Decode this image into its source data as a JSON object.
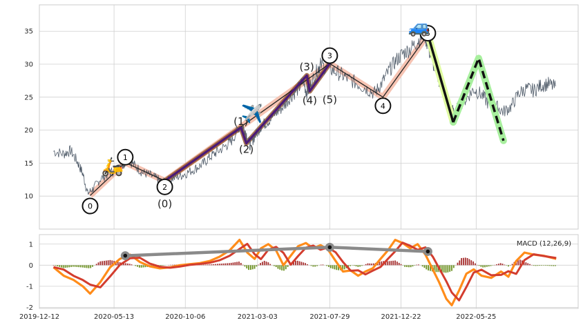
{
  "chart_data": [
    {
      "type": "line",
      "panel": "price",
      "ylim": [
        5,
        39
      ],
      "xlim": [
        "2019-12-12",
        "2022-12-20"
      ],
      "grid": true,
      "y_ticks": [
        10,
        15,
        20,
        25,
        30,
        35
      ],
      "series": [
        {
          "points": [
            [
              "2020-01-10",
              16.8
            ],
            [
              "2020-01-31",
              16.4
            ],
            [
              "2020-02-14",
              16.9
            ],
            [
              "2020-02-28",
              15.2
            ],
            [
              "2020-03-10",
              13.4
            ],
            [
              "2020-03-20",
              10.4
            ],
            [
              "2020-04-01",
              11.2
            ],
            [
              "2020-04-15",
              12.6
            ],
            [
              "2020-05-01",
              13.4
            ],
            [
              "2020-05-15",
              13.9
            ],
            [
              "2020-06-01",
              14.8
            ],
            [
              "2020-06-10",
              15.6
            ],
            [
              "2020-06-25",
              14.6
            ],
            [
              "2020-07-10",
              13.6
            ],
            [
              "2020-07-25",
              13.2
            ],
            [
              "2020-08-10",
              12.6
            ],
            [
              "2020-08-20",
              12.0
            ],
            [
              "2020-09-01",
              12.4
            ],
            [
              "2020-09-20",
              12.9
            ],
            [
              "2020-10-06",
              13.4
            ],
            [
              "2020-10-25",
              14.1
            ],
            [
              "2020-11-10",
              14.8
            ],
            [
              "2020-11-25",
              15.9
            ],
            [
              "2020-12-10",
              16.7
            ],
            [
              "2020-12-28",
              17.6
            ],
            [
              "2021-01-10",
              18.5
            ],
            [
              "2021-01-25",
              20.6
            ],
            [
              "2021-02-05",
              20.2
            ],
            [
              "2021-02-15",
              17.7
            ],
            [
              "2021-02-25",
              19.0
            ],
            [
              "2021-03-10",
              20.6
            ],
            [
              "2021-03-25",
              21.4
            ],
            [
              "2021-04-10",
              22.6
            ],
            [
              "2021-04-25",
              23.6
            ],
            [
              "2021-05-10",
              25.1
            ],
            [
              "2021-05-25",
              26.2
            ],
            [
              "2021-06-05",
              27.5
            ],
            [
              "2021-06-12",
              25.6
            ],
            [
              "2021-06-22",
              27.2
            ],
            [
              "2021-07-05",
              29.4
            ],
            [
              "2021-07-10",
              29.9
            ],
            [
              "2021-07-29",
              29.3
            ],
            [
              "2021-08-15",
              28.7
            ],
            [
              "2021-09-01",
              27.9
            ],
            [
              "2021-09-20",
              27.2
            ],
            [
              "2021-10-10",
              26.4
            ],
            [
              "2021-10-28",
              25.6
            ],
            [
              "2021-11-10",
              26.8
            ],
            [
              "2021-11-25",
              28.7
            ],
            [
              "2021-12-10",
              30.4
            ],
            [
              "2021-12-25",
              31.6
            ],
            [
              "2022-01-10",
              32.3
            ],
            [
              "2022-01-25",
              33.5
            ],
            [
              "2022-02-08",
              34.6
            ],
            [
              "2022-02-20",
              31.5
            ],
            [
              "2022-03-05",
              28.5
            ],
            [
              "2022-03-20",
              26.0
            ],
            [
              "2022-04-01",
              23.8
            ],
            [
              "2022-04-10",
              22.5
            ],
            [
              "2022-04-20",
              23.8
            ],
            [
              "2022-05-05",
              24.8
            ],
            [
              "2022-05-20",
              26.2
            ],
            [
              "2022-06-05",
              25.4
            ],
            [
              "2022-06-20",
              24.0
            ],
            [
              "2022-07-05",
              23.6
            ],
            [
              "2022-07-20",
              22.8
            ],
            [
              "2022-08-05",
              23.6
            ],
            [
              "2022-08-20",
              25.6
            ],
            [
              "2022-09-05",
              26.3
            ],
            [
              "2022-09-20",
              26.0
            ],
            [
              "2022-10-05",
              26.8
            ],
            [
              "2022-10-20",
              27.0
            ],
            [
              "2022-11-05",
              26.4
            ]
          ]
        }
      ],
      "waves_main": [
        [
          "2020-03-25",
          10.1
        ],
        [
          "2020-06-05",
          15.1
        ],
        [
          "2020-08-25",
          12.3
        ],
        [
          "2021-07-29",
          30.1
        ],
        [
          "2021-11-15",
          25.0
        ],
        [
          "2022-02-15",
          34.5
        ]
      ],
      "waves_sub": [
        [
          "2020-08-25",
          12.3
        ],
        [
          "2021-01-28",
          20.4
        ],
        [
          "2021-02-08",
          18.0
        ],
        [
          "2021-06-12",
          28.3
        ],
        [
          "2021-06-18",
          25.9
        ],
        [
          "2021-07-29",
          30.1
        ]
      ],
      "projection_solid": [
        [
          "2022-02-15",
          34.5
        ],
        [
          "2022-04-08",
          21.2
        ]
      ],
      "projection_dashed": [
        [
          "2022-04-08",
          21.2
        ],
        [
          "2022-05-30",
          30.9
        ],
        [
          "2022-07-20",
          18.4
        ]
      ],
      "labels_main": [
        {
          "text": "0",
          "x": "2020-03-25",
          "y": 8.5
        },
        {
          "text": "1",
          "x": "2020-06-05",
          "y": 15.9
        },
        {
          "text": "2",
          "x": "2020-08-25",
          "y": 11.4
        },
        {
          "text": "3",
          "x": "2021-07-29",
          "y": 31.3
        },
        {
          "text": "4",
          "x": "2021-11-15",
          "y": 23.7
        },
        {
          "text": "5",
          "x": "2022-02-15",
          "y": 34.7
        }
      ],
      "labels_sub": [
        {
          "text": "(0)",
          "x": "2020-08-25",
          "y": 8.8
        },
        {
          "text": "(1)",
          "x": "2021-01-28",
          "y": 21.3
        },
        {
          "text": "(2)",
          "x": "2021-02-08",
          "y": 17.1
        },
        {
          "text": "(3)",
          "x": "2021-06-12",
          "y": 29.6
        },
        {
          "text": "(4)",
          "x": "2021-06-18",
          "y": 24.5
        },
        {
          "text": "(5)",
          "x": "2021-07-29",
          "y": 24.6
        }
      ],
      "emojis": [
        {
          "glyph": "🛵",
          "x": "2020-05-10",
          "y": 14.4
        },
        {
          "glyph": "✈️",
          "x": "2021-02-20",
          "y": 22.4
        },
        {
          "glyph": "🚙",
          "x": "2022-01-28",
          "y": 35.6
        }
      ]
    },
    {
      "type": "line",
      "panel": "macd",
      "title": "MACD (12,26,9)",
      "ylim": [
        -2.05,
        1.45
      ],
      "y_ticks": [
        -2,
        -1,
        0,
        1
      ],
      "x_ticks": [
        "2019-12-12",
        "2020-05-13",
        "2020-10-06",
        "2021-03-03",
        "2021-07-29",
        "2021-12-22",
        "2022-05-25"
      ],
      "grid": true,
      "macd_line": [
        [
          "2020-01-10",
          -0.1
        ],
        [
          "2020-01-31",
          -0.5
        ],
        [
          "2020-02-20",
          -0.7
        ],
        [
          "2020-03-10",
          -1.0
        ],
        [
          "2020-03-25",
          -1.35
        ],
        [
          "2020-04-15",
          -0.8
        ],
        [
          "2020-05-05",
          -0.1
        ],
        [
          "2020-05-25",
          0.3
        ],
        [
          "2020-06-15",
          0.5
        ],
        [
          "2020-07-05",
          0.15
        ],
        [
          "2020-07-25",
          -0.05
        ],
        [
          "2020-08-15",
          -0.15
        ],
        [
          "2020-09-05",
          -0.1
        ],
        [
          "2020-09-25",
          0.0
        ],
        [
          "2020-10-15",
          0.05
        ],
        [
          "2020-11-05",
          0.1
        ],
        [
          "2020-11-25",
          0.2
        ],
        [
          "2020-12-15",
          0.4
        ],
        [
          "2021-01-05",
          0.7
        ],
        [
          "2021-01-25",
          1.2
        ],
        [
          "2021-02-10",
          0.6
        ],
        [
          "2021-02-25",
          0.3
        ],
        [
          "2021-03-10",
          0.8
        ],
        [
          "2021-03-25",
          1.0
        ],
        [
          "2021-04-10",
          0.7
        ],
        [
          "2021-04-25",
          0.0
        ],
        [
          "2021-05-10",
          0.45
        ],
        [
          "2021-05-25",
          0.9
        ],
        [
          "2021-06-10",
          1.05
        ],
        [
          "2021-06-25",
          0.8
        ],
        [
          "2021-07-10",
          0.95
        ],
        [
          "2021-07-25",
          0.75
        ],
        [
          "2021-08-10",
          0.2
        ],
        [
          "2021-08-25",
          -0.3
        ],
        [
          "2021-09-10",
          -0.25
        ],
        [
          "2021-09-25",
          -0.5
        ],
        [
          "2021-10-10",
          -0.3
        ],
        [
          "2021-10-25",
          -0.15
        ],
        [
          "2021-11-10",
          0.3
        ],
        [
          "2021-11-25",
          0.7
        ],
        [
          "2021-12-10",
          1.2
        ],
        [
          "2021-12-25",
          1.05
        ],
        [
          "2022-01-10",
          0.8
        ],
        [
          "2022-01-25",
          1.0
        ],
        [
          "2022-02-10",
          0.5
        ],
        [
          "2022-02-25",
          -0.2
        ],
        [
          "2022-03-10",
          -0.8
        ],
        [
          "2022-03-25",
          -1.6
        ],
        [
          "2022-04-05",
          -1.9
        ],
        [
          "2022-04-20",
          -1.2
        ],
        [
          "2022-05-05",
          -0.4
        ],
        [
          "2022-05-20",
          -0.2
        ],
        [
          "2022-06-05",
          -0.5
        ],
        [
          "2022-06-25",
          -0.6
        ],
        [
          "2022-07-15",
          -0.3
        ],
        [
          "2022-07-30",
          -0.55
        ],
        [
          "2022-08-15",
          0.2
        ],
        [
          "2022-09-01",
          0.6
        ],
        [
          "2022-09-20",
          0.5
        ],
        [
          "2022-10-10",
          0.45
        ],
        [
          "2022-11-05",
          0.3
        ]
      ],
      "trend_line": [
        [
          "2020-06-05",
          0.45
        ],
        [
          "2021-07-29",
          0.85
        ],
        [
          "2022-02-15",
          0.65
        ]
      ]
    }
  ],
  "colors": {
    "price": "#4e5a68",
    "wave_main": "#222222",
    "wave_band": "#f4b9a4",
    "wave_sub": "#4b1a78",
    "wave_sub_band": "#8a4a1c",
    "projection": "#111111",
    "projection_band_solid": "#dffba0",
    "projection_band_dashed": "#a8ef9e",
    "macd_orange": "#ff8c1a",
    "macd_red": "#d33d2e",
    "hist_pos": "#a52e2e",
    "hist_neg": "#6a8f1e",
    "trend": "#8a8a8a"
  }
}
